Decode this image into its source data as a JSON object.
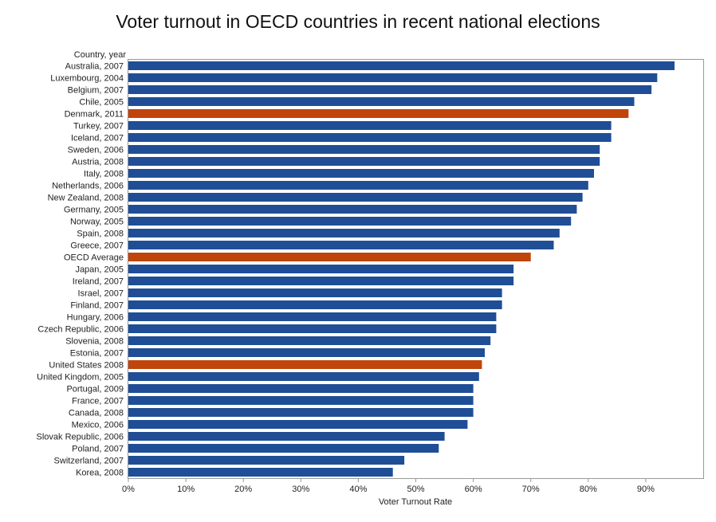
{
  "chart_data": {
    "type": "bar",
    "orientation": "horizontal",
    "title": "Voter turnout in OECD countries in recent national elections",
    "xlabel": "Voter Turnout Rate",
    "ylabel": "Country, year",
    "xlim": [
      0,
      100
    ],
    "xticks": [
      "0%",
      "10%",
      "20%",
      "30%",
      "40%",
      "50%",
      "60%",
      "70%",
      "80%",
      "90%"
    ],
    "grid": false,
    "colors": {
      "default": "#1f4e96",
      "highlight": "#c0450b"
    },
    "categories": [
      "Australia, 2007",
      "Luxembourg, 2004",
      "Belgium, 2007",
      "Chile, 2005",
      "Denmark, 2011",
      "Turkey, 2007",
      "Iceland, 2007",
      "Sweden, 2006",
      "Austria, 2008",
      "Italy, 2008",
      "Netherlands, 2006",
      "New Zealand, 2008",
      "Germany, 2005",
      "Norway, 2005",
      "Spain, 2008",
      "Greece, 2007",
      "OECD Average",
      "Japan, 2005",
      "Ireland, 2007",
      "Israel, 2007",
      "Finland, 2007",
      "Hungary, 2006",
      "Czech Republic, 2006",
      "Slovenia, 2008",
      "Estonia, 2007",
      "United States 2008",
      "United Kingdom, 2005",
      "Portugal, 2009",
      "France, 2007",
      "Canada, 2008",
      "Mexico, 2006",
      "Slovak Republic, 2006",
      "Poland, 2007",
      "Switzerland, 2007",
      "Korea, 2008"
    ],
    "values": [
      95,
      92,
      91,
      88,
      87,
      84,
      84,
      82,
      82,
      81,
      80,
      79,
      78,
      77,
      75,
      74,
      70,
      67,
      67,
      65,
      65,
      64,
      64,
      63,
      62,
      61.5,
      61,
      60,
      60,
      60,
      59,
      55,
      54,
      48,
      46
    ],
    "highlighted": [
      "Denmark, 2011",
      "OECD Average",
      "United States 2008"
    ]
  }
}
